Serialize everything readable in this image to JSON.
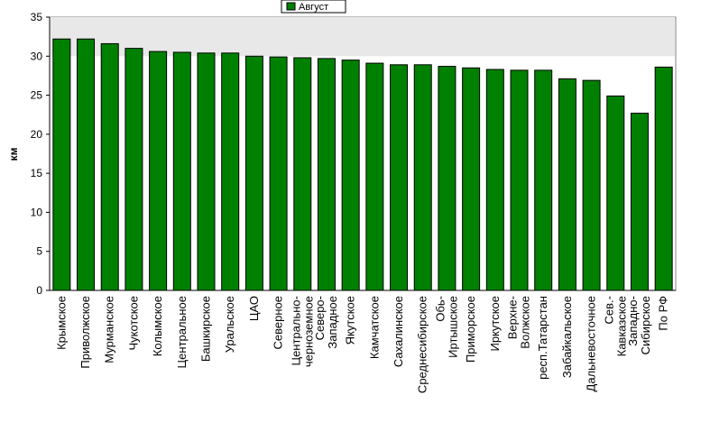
{
  "chart_data": {
    "type": "bar",
    "categories": [
      [
        "Крымское"
      ],
      [
        "Приволжское"
      ],
      [
        "Мурманское"
      ],
      [
        "Чукотское"
      ],
      [
        "Колымское"
      ],
      [
        "Центральное"
      ],
      [
        "Башкирское"
      ],
      [
        "Уральское"
      ],
      [
        "ЦАО"
      ],
      [
        "Северное"
      ],
      [
        "Центрально-",
        "черноземное"
      ],
      [
        "Северо-",
        "Западное"
      ],
      [
        "Якутское"
      ],
      [
        "Камчатское"
      ],
      [
        "Сахалинское"
      ],
      [
        "Среднесибирское"
      ],
      [
        "Обь-",
        "Иртышское"
      ],
      [
        "Приморское"
      ],
      [
        "Иркутское"
      ],
      [
        "Верхне-",
        "Волжское"
      ],
      [
        "респ.Татарстан"
      ],
      [
        "Забайкальское"
      ],
      [
        "Дальневосточное"
      ],
      [
        "Сев.-",
        "Кавказское"
      ],
      [
        "Западно-",
        "Сибирское"
      ],
      [
        "По РФ"
      ]
    ],
    "series": [
      {
        "name": "Август",
        "color": "#008000",
        "values": [
          32.2,
          32.2,
          31.6,
          31.0,
          30.6,
          30.5,
          30.4,
          30.4,
          30.0,
          29.9,
          29.8,
          29.7,
          29.5,
          29.1,
          28.9,
          28.9,
          28.7,
          28.5,
          28.3,
          28.2,
          28.2,
          27.1,
          26.9,
          24.9,
          22.7,
          28.6
        ]
      }
    ],
    "ylabel": "км",
    "ylim": [
      0,
      35
    ],
    "yticks": [
      0,
      5,
      10,
      15,
      20,
      25,
      30,
      35
    ],
    "legend": "top-center",
    "grid": false
  }
}
